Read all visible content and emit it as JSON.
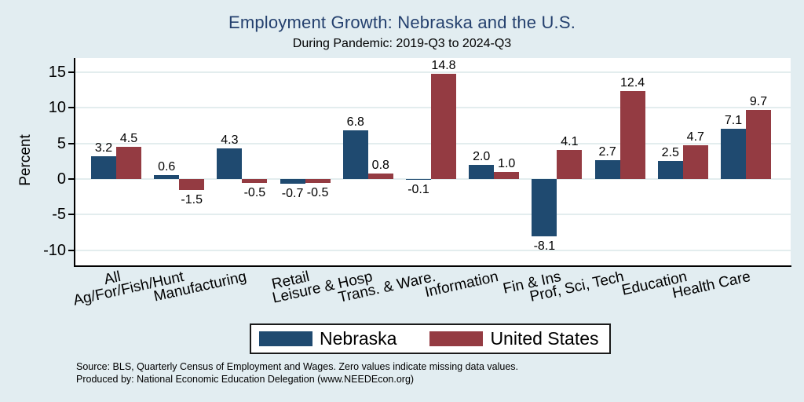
{
  "title": "Employment Growth: Nebraska and the U.S.",
  "subtitle": "During Pandemic: 2019-Q3 to 2024-Q3",
  "colors": {
    "background": "#e2edf1",
    "title": "#24406e",
    "grid": "#e3edee",
    "axis": "#000000",
    "nebraska": "#1f4a70",
    "united_states": "#943b42"
  },
  "chart_data": {
    "type": "bar",
    "title": "Employment Growth: Nebraska and the U.S.",
    "subtitle": "During Pandemic: 2019-Q3 to 2024-Q3",
    "categories": [
      "All",
      "Ag/For/Fish/Hunt",
      "Manufacturing",
      "Retail",
      "Leisure & Hosp",
      "Trans. & Ware.",
      "Information",
      "Fin & Ins",
      "Prof, Sci, Tech",
      "Education",
      "Health Care"
    ],
    "series": [
      {
        "name": "Nebraska",
        "color": "#1f4a70",
        "values": [
          3.2,
          0.6,
          4.3,
          -0.7,
          6.8,
          -0.1,
          2.0,
          -8.1,
          2.7,
          2.5,
          7.1
        ]
      },
      {
        "name": "United States",
        "color": "#943b42",
        "values": [
          4.5,
          -1.5,
          -0.5,
          -0.5,
          0.8,
          14.8,
          1.0,
          4.1,
          12.4,
          4.7,
          9.7
        ]
      }
    ],
    "xlabel": "",
    "ylabel": "Percent",
    "yticks": [
      15,
      10,
      5,
      0,
      -5,
      -10
    ],
    "ylim": [
      -12.2,
      17.0
    ],
    "grid": true,
    "legend_position": "bottom",
    "value_labels": true
  },
  "footer": {
    "line1": "Source: BLS, Quarterly Census of Employment and Wages. Zero values indicate missing data values.",
    "line2": "Produced by: National Economic Education Delegation (www.NEEDEcon.org)"
  }
}
